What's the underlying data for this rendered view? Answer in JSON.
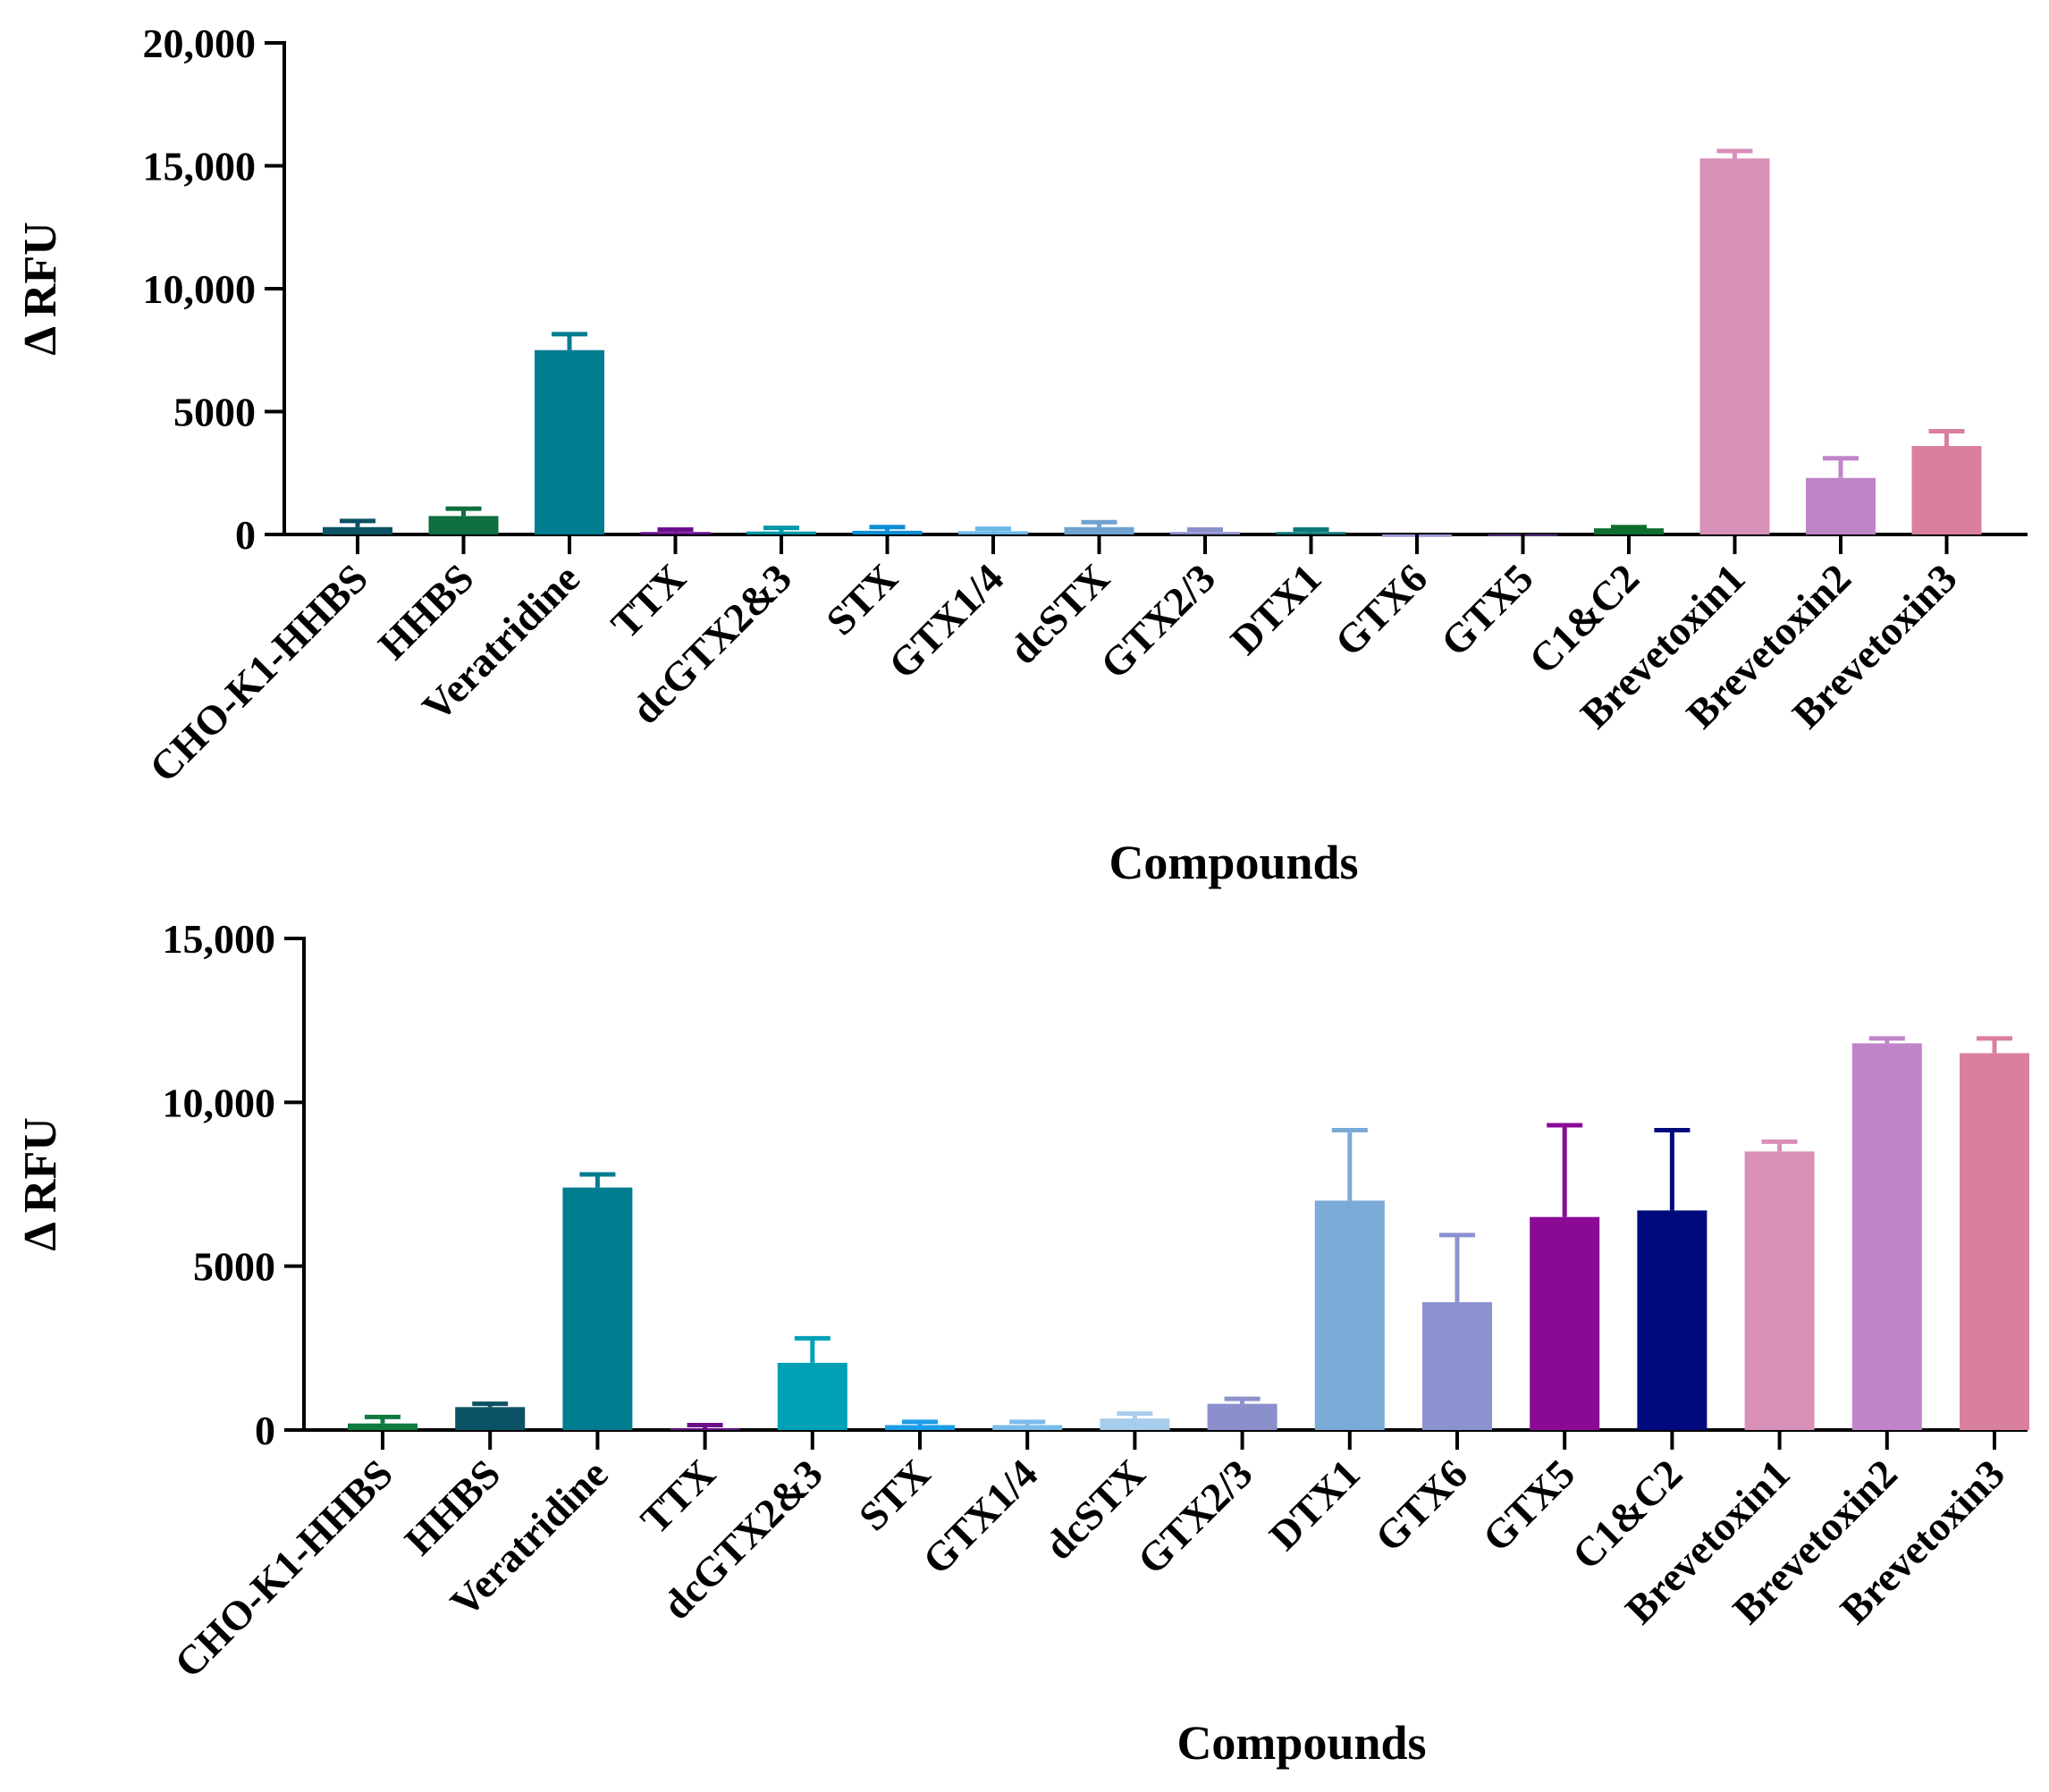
{
  "chart_data": [
    {
      "type": "bar",
      "xlabel": "Compounds",
      "ylabel": "Δ RFU",
      "ylim": [
        0,
        20000
      ],
      "yticks": [
        0,
        5000,
        10000,
        15000,
        20000
      ],
      "ytick_labels": [
        "0",
        "5000",
        "10,000",
        "15,000",
        "20,000"
      ],
      "grid": false,
      "legend": "none",
      "categories": [
        "CHO-K1-HHBS",
        "HHBS",
        "Veratridine",
        "TTX",
        "dcGTX2&3",
        "STX",
        "GTX1/4",
        "dcSTX",
        "GTX2/3",
        "DTX1",
        "GTX6",
        "GTX5",
        "C1&C2",
        "Brevetoxin1",
        "Brevetoxin2",
        "Brevetoxin3"
      ],
      "values": [
        300,
        750,
        7500,
        100,
        120,
        150,
        130,
        300,
        100,
        100,
        -100,
        0,
        250,
        15300,
        2300,
        3600
      ],
      "errors": [
        250,
        300,
        650,
        100,
        150,
        150,
        100,
        200,
        100,
        100,
        0,
        0,
        50,
        300,
        800,
        600
      ],
      "colors": [
        "#0b5264",
        "#0f6e3f",
        "#007d91",
        "#6a0e8c",
        "#0098a8",
        "#0a8fd6",
        "#6ab8e8",
        "#6fa3cf",
        "#8b8fcc",
        "#0d7878",
        "#9a9ad8",
        "#6d3fa0",
        "#0f6e2f",
        "#d88fb8",
        "#c084c8",
        "#d97fa0"
      ]
    },
    {
      "type": "bar",
      "xlabel": "Compounds",
      "ylabel": "Δ RFU",
      "ylim": [
        0,
        15000
      ],
      "yticks": [
        0,
        5000,
        10000,
        15000
      ],
      "ytick_labels": [
        "0",
        "5000",
        "10,000",
        "15,000"
      ],
      "grid": false,
      "legend": "none",
      "categories": [
        "CHO-K1-HHBS",
        "HHBS",
        "Veratridine",
        "TTX",
        "dcGTX2&3",
        "STX",
        "GTX1/4",
        "dcSTX",
        "GTX2/3",
        "DTX1",
        "GTX6",
        "GTX5",
        "C1&C2",
        "Brevetoxin1",
        "Brevetoxin2",
        "Brevetoxin3"
      ],
      "values": [
        200,
        700,
        7400,
        50,
        2050,
        150,
        150,
        350,
        800,
        7000,
        3900,
        6500,
        6700,
        8500,
        11800,
        11500
      ],
      "errors": [
        200,
        100,
        400,
        100,
        750,
        100,
        100,
        150,
        150,
        2150,
        2050,
        2800,
        2450,
        300,
        150,
        450
      ],
      "colors": [
        "#0f7a3f",
        "#0b5264",
        "#007d91",
        "#6a0e8c",
        "#00a0b5",
        "#1a9ee8",
        "#7bbce8",
        "#a8ccec",
        "#8b8fcc",
        "#7aaad6",
        "#8c92d0",
        "#8a0a96",
        "#000a7c",
        "#d88fb8",
        "#c084c8",
        "#d97fa0"
      ]
    }
  ]
}
